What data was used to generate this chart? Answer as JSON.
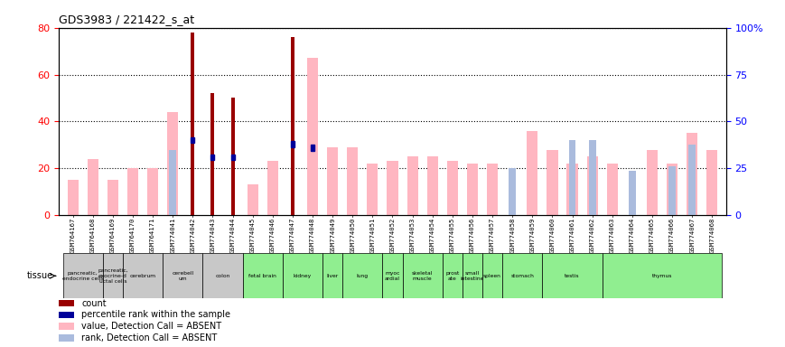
{
  "title": "GDS3983 / 221422_s_at",
  "samples": [
    "GSM764167",
    "GSM764168",
    "GSM764169",
    "GSM764170",
    "GSM764171",
    "GSM774041",
    "GSM774042",
    "GSM774043",
    "GSM774044",
    "GSM774045",
    "GSM774046",
    "GSM774047",
    "GSM774048",
    "GSM774049",
    "GSM774050",
    "GSM774051",
    "GSM774052",
    "GSM774053",
    "GSM774054",
    "GSM774055",
    "GSM774056",
    "GSM774057",
    "GSM774058",
    "GSM774059",
    "GSM774060",
    "GSM774061",
    "GSM774062",
    "GSM774063",
    "GSM774064",
    "GSM774065",
    "GSM774066",
    "GSM774067",
    "GSM774068"
  ],
  "tissue_groups": [
    {
      "label": "pancreatic,\nendocrine cells",
      "start": 0,
      "end": 2,
      "color": "#c8c8c8"
    },
    {
      "label": "pancreatic,\nexocrine-d\nuctal cells",
      "start": 2,
      "end": 3,
      "color": "#c8c8c8"
    },
    {
      "label": "cerebrum",
      "start": 3,
      "end": 5,
      "color": "#c8c8c8"
    },
    {
      "label": "cerebell\num",
      "start": 5,
      "end": 7,
      "color": "#c8c8c8"
    },
    {
      "label": "colon",
      "start": 7,
      "end": 9,
      "color": "#c8c8c8"
    },
    {
      "label": "fetal brain",
      "start": 9,
      "end": 11,
      "color": "#90ee90"
    },
    {
      "label": "kidney",
      "start": 11,
      "end": 13,
      "color": "#90ee90"
    },
    {
      "label": "liver",
      "start": 13,
      "end": 14,
      "color": "#90ee90"
    },
    {
      "label": "lung",
      "start": 14,
      "end": 16,
      "color": "#90ee90"
    },
    {
      "label": "myoc\nardial",
      "start": 16,
      "end": 17,
      "color": "#90ee90"
    },
    {
      "label": "skeletal\nmuscle",
      "start": 17,
      "end": 19,
      "color": "#90ee90"
    },
    {
      "label": "prost\nate",
      "start": 19,
      "end": 20,
      "color": "#90ee90"
    },
    {
      "label": "small\nintestine",
      "start": 20,
      "end": 21,
      "color": "#90ee90"
    },
    {
      "label": "spleen",
      "start": 21,
      "end": 22,
      "color": "#90ee90"
    },
    {
      "label": "stomach",
      "start": 22,
      "end": 24,
      "color": "#90ee90"
    },
    {
      "label": "testis",
      "start": 24,
      "end": 27,
      "color": "#90ee90"
    },
    {
      "label": "thymus",
      "start": 27,
      "end": 33,
      "color": "#90ee90"
    }
  ],
  "count": [
    0,
    0,
    0,
    0,
    0,
    0,
    78,
    52,
    50,
    0,
    0,
    76,
    0,
    0,
    0,
    0,
    0,
    0,
    0,
    0,
    0,
    0,
    0,
    0,
    0,
    0,
    0,
    0,
    0,
    0,
    0,
    0,
    0
  ],
  "percentile": [
    0,
    0,
    0,
    0,
    0,
    0,
    40,
    31,
    31,
    0,
    0,
    38,
    36,
    0,
    0,
    0,
    0,
    0,
    0,
    0,
    0,
    0,
    0,
    0,
    0,
    0,
    0,
    0,
    0,
    0,
    0,
    0,
    0
  ],
  "value_absent": [
    15,
    24,
    15,
    20,
    20,
    44,
    0,
    0,
    0,
    13,
    23,
    0,
    67,
    29,
    29,
    22,
    23,
    25,
    25,
    23,
    22,
    22,
    0,
    36,
    28,
    22,
    25,
    22,
    0,
    28,
    22,
    35,
    28
  ],
  "rank_absent": [
    0,
    0,
    0,
    0,
    0,
    28,
    0,
    0,
    0,
    0,
    0,
    0,
    0,
    0,
    0,
    0,
    0,
    0,
    0,
    0,
    0,
    0,
    20,
    0,
    0,
    32,
    32,
    0,
    19,
    0,
    21,
    30,
    0
  ],
  "ylim_left": [
    0,
    80
  ],
  "ylim_right": [
    0,
    100
  ],
  "yticks_left": [
    0,
    20,
    40,
    60,
    80
  ],
  "yticks_right": [
    0,
    25,
    50,
    75,
    100
  ],
  "count_color": "#990000",
  "percentile_color": "#000099",
  "value_absent_color": "#FFB6C1",
  "rank_absent_color": "#aabbdd",
  "bg_color": "#ffffff",
  "xbg_color": "#c8c8c8"
}
